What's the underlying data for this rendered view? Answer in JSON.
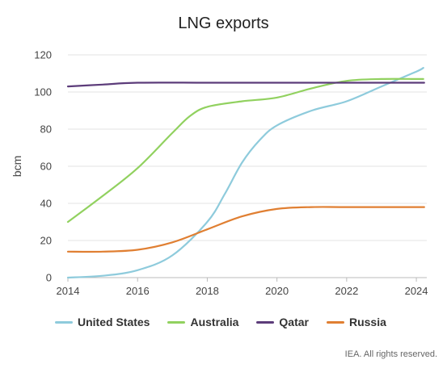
{
  "chart_data": {
    "type": "line",
    "title": "LNG exports",
    "ylabel": "bcm",
    "xlabel": "",
    "xlim": [
      2014,
      2024.3
    ],
    "ylim": [
      0,
      120
    ],
    "x_ticks": [
      2014,
      2016,
      2018,
      2020,
      2022,
      2024
    ],
    "y_ticks": [
      0,
      20,
      40,
      60,
      80,
      100,
      120
    ],
    "grid": "horizontal",
    "legend_position": "bottom",
    "series": [
      {
        "name": "United States",
        "color": "#8ecbdc",
        "points": [
          [
            2014,
            0
          ],
          [
            2015,
            1
          ],
          [
            2016,
            4
          ],
          [
            2017,
            12
          ],
          [
            2018,
            30
          ],
          [
            2018.5,
            45
          ],
          [
            2019,
            62
          ],
          [
            2019.5,
            74
          ],
          [
            2020,
            82
          ],
          [
            2021,
            90
          ],
          [
            2022,
            95
          ],
          [
            2023,
            103
          ],
          [
            2024,
            111
          ],
          [
            2024.2,
            113
          ]
        ]
      },
      {
        "name": "Australia",
        "color": "#91d15f",
        "points": [
          [
            2014,
            30
          ],
          [
            2015,
            44
          ],
          [
            2016,
            59
          ],
          [
            2017,
            78
          ],
          [
            2017.5,
            87
          ],
          [
            2018,
            92
          ],
          [
            2019,
            95
          ],
          [
            2020,
            97
          ],
          [
            2021,
            102
          ],
          [
            2022,
            106
          ],
          [
            2023,
            107
          ],
          [
            2024,
            107
          ],
          [
            2024.2,
            107
          ]
        ]
      },
      {
        "name": "Qatar",
        "color": "#5c3c7a",
        "points": [
          [
            2014,
            103
          ],
          [
            2015,
            104
          ],
          [
            2016,
            105
          ],
          [
            2018,
            105
          ],
          [
            2020,
            105
          ],
          [
            2022,
            105
          ],
          [
            2024,
            105
          ],
          [
            2024.2,
            105
          ]
        ]
      },
      {
        "name": "Russia",
        "color": "#e07f32",
        "points": [
          [
            2014,
            14
          ],
          [
            2015,
            14
          ],
          [
            2016,
            15
          ],
          [
            2017,
            19
          ],
          [
            2018,
            26
          ],
          [
            2019,
            33
          ],
          [
            2020,
            37
          ],
          [
            2021,
            38
          ],
          [
            2022,
            38
          ],
          [
            2024,
            38
          ],
          [
            2024.2,
            38
          ]
        ]
      }
    ]
  },
  "credit": "IEA. All rights reserved."
}
